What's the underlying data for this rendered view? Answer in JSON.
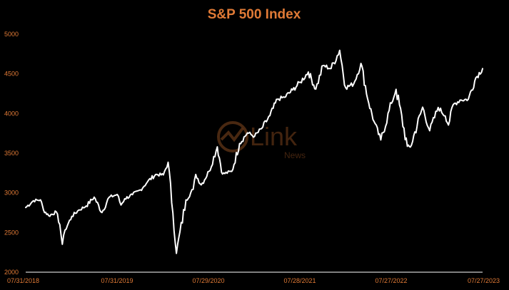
{
  "colors": {
    "background": "#000000",
    "title": "#e07a36",
    "tick_labels": "#e07a36",
    "line": "#ffffff",
    "axis": "#ffffff",
    "watermark": "#e07a36"
  },
  "watermark": {
    "brand": "Link",
    "sub": "News",
    "icon": "link-news-logo-icon"
  },
  "chart_data": {
    "type": "line",
    "title": "S&P 500 Index",
    "xlabel": "",
    "ylabel": "",
    "ylim": [
      2000,
      5000
    ],
    "yticks": [
      2000,
      2500,
      3000,
      3500,
      4000,
      4500,
      5000
    ],
    "xlim": [
      "07/31/2018",
      "07/27/2023"
    ],
    "xtick_labels": [
      "07/31/2018",
      "07/31/2019",
      "07/29/2020",
      "07/28/2021",
      "07/27/2022",
      "07/27/2023"
    ],
    "grid": false,
    "legend": "none",
    "series": [
      {
        "x": [
          "2018-07-31",
          "2018-08-31",
          "2018-09-28",
          "2018-10-10",
          "2018-10-31",
          "2018-11-30",
          "2018-12-14",
          "2018-12-24",
          "2019-01-04",
          "2019-01-31",
          "2019-02-28",
          "2019-03-29",
          "2019-04-30",
          "2019-05-31",
          "2019-06-28",
          "2019-07-31",
          "2019-08-15",
          "2019-08-30",
          "2019-09-30",
          "2019-10-31",
          "2019-11-29",
          "2019-12-31",
          "2020-01-31",
          "2020-02-19",
          "2020-03-09",
          "2020-03-23",
          "2020-04-30",
          "2020-05-29",
          "2020-06-08",
          "2020-06-30",
          "2020-07-31",
          "2020-09-02",
          "2020-09-23",
          "2020-10-30",
          "2020-11-30",
          "2020-12-31",
          "2021-01-29",
          "2021-02-26",
          "2021-03-31",
          "2021-04-30",
          "2021-05-28",
          "2021-06-30",
          "2021-07-30",
          "2021-08-31",
          "2021-09-30",
          "2021-10-29",
          "2021-11-30",
          "2022-01-03",
          "2022-01-27",
          "2022-02-28",
          "2022-03-29",
          "2022-04-29",
          "2022-05-20",
          "2022-06-16",
          "2022-07-29",
          "2022-08-16",
          "2022-09-30",
          "2022-10-12",
          "2022-11-30",
          "2022-12-28",
          "2023-01-31",
          "2023-02-28",
          "2023-03-13",
          "2023-03-31",
          "2023-04-28",
          "2023-05-31",
          "2023-06-30",
          "2023-07-27"
        ],
        "values": [
          2816,
          2901,
          2913,
          2785,
          2711,
          2760,
          2600,
          2351,
          2532,
          2704,
          2784,
          2834,
          2946,
          2752,
          2942,
          2980,
          2847,
          2926,
          2977,
          3038,
          3141,
          3231,
          3226,
          3386,
          2746,
          2237,
          2912,
          3044,
          3232,
          3100,
          3271,
          3580,
          3237,
          3270,
          3622,
          3756,
          3714,
          3811,
          3973,
          4181,
          4204,
          4298,
          4395,
          4523,
          4308,
          4605,
          4567,
          4797,
          4326,
          4374,
          4632,
          4132,
          3901,
          3667,
          4130,
          4305,
          3586,
          3577,
          4080,
          3783,
          4077,
          3970,
          3855,
          4109,
          4169,
          4180,
          4450,
          4566
        ]
      }
    ]
  }
}
